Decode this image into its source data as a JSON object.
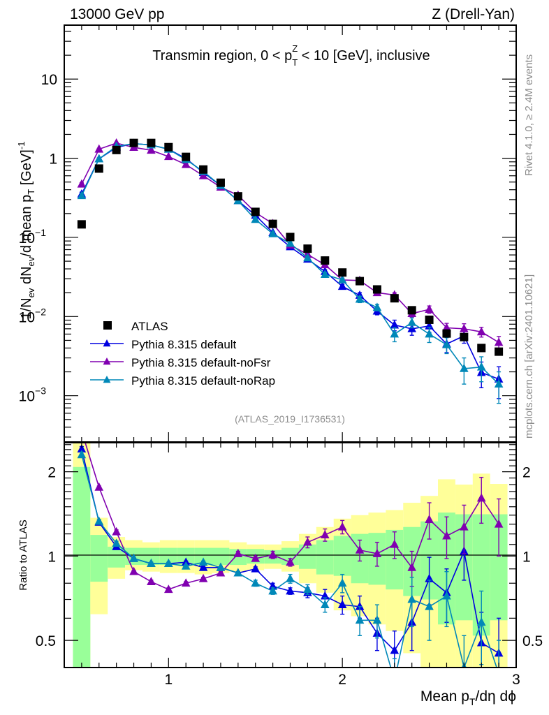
{
  "header": {
    "left": "13000 GeV pp",
    "right": "Z (Drell-Yan)"
  },
  "side_labels": {
    "rivet": "Rivet 4.1.0, ≥ 2.4M events",
    "mcplots": "mcplots.cern.ch [arXiv:2401.10621]"
  },
  "chart_data": [
    {
      "type": "scatter",
      "panel": "main",
      "title": "Transmin region, 0 < p_T^Z < 10 [GeV], inclusive",
      "title_parts": {
        "pre": "Transmin region, 0 < p",
        "sup": "Z",
        "sub": "T",
        "post": " < 10 [GeV], inclusive"
      },
      "xlabel": "Mean p_T/dη dϕ",
      "ylabel": "1/N_ev dN_ev/d mean p_T [GeV]^-1",
      "yscale": "log",
      "xlim": [
        0.4,
        3.0
      ],
      "ylim": [
        0.00026,
        48
      ],
      "yticks": [
        {
          "v": 10,
          "base": "10",
          "exp": ""
        },
        {
          "v": 1,
          "base": "1",
          "exp": ""
        },
        {
          "v": 0.1,
          "base": "10",
          "exp": "−1"
        },
        {
          "v": 0.01,
          "base": "10",
          "exp": "−2"
        },
        {
          "v": 0.001,
          "base": "10",
          "exp": "−3"
        }
      ],
      "annotation": "(ATLAS_2019_I1736531)",
      "legend_position": "lower-left",
      "x": [
        0.5,
        0.6,
        0.7,
        0.8,
        0.9,
        1.0,
        1.1,
        1.2,
        1.3,
        1.4,
        1.5,
        1.6,
        1.7,
        1.8,
        1.9,
        2.0,
        2.1,
        2.2,
        2.3,
        2.4,
        2.5,
        2.6,
        2.7,
        2.8,
        2.9
      ],
      "series": [
        {
          "name": "ATLAS",
          "color": "#000000",
          "marker": "square",
          "values": [
            0.146,
            0.74,
            1.27,
            1.56,
            1.56,
            1.38,
            1.04,
            0.72,
            0.49,
            0.33,
            0.21,
            0.148,
            0.101,
            0.072,
            0.051,
            0.036,
            0.028,
            0.022,
            0.017,
            0.012,
            0.0091,
            0.0061,
            0.0055,
            0.004,
            0.0036
          ]
        },
        {
          "name": "Pythia 8.315 default",
          "color": "#0000e0",
          "marker": "triangle",
          "values": [
            0.352,
            0.98,
            1.37,
            1.53,
            1.47,
            1.3,
            0.99,
            0.66,
            0.45,
            0.29,
            0.19,
            0.115,
            0.076,
            0.053,
            0.037,
            0.024,
            0.0185,
            0.0117,
            0.0078,
            0.007,
            0.0076,
            0.0045,
            0.0057,
            0.00196,
            0.00162
          ],
          "err": [
            0.02,
            0.03,
            0.04,
            0.04,
            0.04,
            0.03,
            0.03,
            0.02,
            0.01,
            0.008,
            0.005,
            0.004,
            0.003,
            0.002,
            0.002,
            0.0015,
            0.0015,
            0.0012,
            0.0012,
            0.0012,
            0.0013,
            0.001,
            0.0011,
            0.0007,
            0.0007
          ]
        },
        {
          "name": "Pythia 8.315 default-noFsr",
          "color": "#8000b0",
          "marker": "triangle",
          "values": [
            0.47,
            1.3,
            1.55,
            1.37,
            1.26,
            1.05,
            0.83,
            0.6,
            0.43,
            0.34,
            0.206,
            0.149,
            0.08,
            0.061,
            0.045,
            0.029,
            0.0285,
            0.02,
            0.0187,
            0.0109,
            0.0123,
            0.0072,
            0.007,
            0.0064,
            0.0047
          ],
          "err": [
            0.02,
            0.03,
            0.04,
            0.04,
            0.04,
            0.03,
            0.03,
            0.02,
            0.01,
            0.008,
            0.005,
            0.004,
            0.003,
            0.002,
            0.002,
            0.0015,
            0.0015,
            0.0012,
            0.0012,
            0.0012,
            0.0013,
            0.001,
            0.0011,
            0.0009,
            0.0009
          ]
        },
        {
          "name": "Pythia 8.315 default-noRap",
          "color": "#0088b8",
          "marker": "triangle",
          "values": [
            0.336,
            0.98,
            1.41,
            1.53,
            1.47,
            1.3,
            0.96,
            0.68,
            0.45,
            0.29,
            0.168,
            0.111,
            0.084,
            0.055,
            0.034,
            0.029,
            0.0165,
            0.013,
            0.006,
            0.0084,
            0.006,
            0.0044,
            0.0022,
            0.0023,
            0.0014
          ],
          "err": [
            0.02,
            0.03,
            0.04,
            0.04,
            0.04,
            0.03,
            0.03,
            0.02,
            0.01,
            0.008,
            0.005,
            0.004,
            0.003,
            0.002,
            0.002,
            0.0015,
            0.0015,
            0.0012,
            0.0012,
            0.0012,
            0.0013,
            0.001,
            0.0008,
            0.0008,
            0.0006
          ]
        }
      ]
    },
    {
      "type": "scatter",
      "panel": "ratio",
      "ylabel": "Ratio to ATLAS",
      "yscale": "log",
      "xlim": [
        0.4,
        3.0
      ],
      "ylim": [
        0.4,
        2.54
      ],
      "yticks": [
        {
          "v": 2,
          "label": "2"
        },
        {
          "v": 1,
          "label": "1"
        },
        {
          "v": 0.5,
          "label": "0.5"
        }
      ],
      "xticks": [
        {
          "v": 1,
          "label": "1"
        },
        {
          "v": 2,
          "label": "2"
        },
        {
          "v": 3,
          "label": "3"
        }
      ],
      "x": [
        0.5,
        0.6,
        0.7,
        0.8,
        0.9,
        1.0,
        1.1,
        1.2,
        1.3,
        1.4,
        1.5,
        1.6,
        1.7,
        1.8,
        1.9,
        2.0,
        2.1,
        2.2,
        2.3,
        2.4,
        2.5,
        2.6,
        2.7,
        2.8,
        2.9
      ],
      "bands": {
        "stat_color": "#99ff99",
        "total_color": "#ffff99",
        "bin_edges": [
          0.45,
          0.55,
          0.65,
          0.75,
          0.85,
          0.95,
          1.05,
          1.15,
          1.25,
          1.35,
          1.45,
          1.55,
          1.65,
          1.75,
          1.85,
          1.95,
          2.05,
          2.15,
          2.25,
          2.35,
          2.45,
          2.55,
          2.65,
          2.75,
          2.85,
          2.95
        ],
        "stat_hi": [
          2.08,
          1.19,
          1.08,
          1.07,
          1.07,
          1.07,
          1.07,
          1.07,
          1.07,
          1.06,
          1.06,
          1.05,
          1.07,
          1.1,
          1.14,
          1.18,
          1.2,
          1.21,
          1.24,
          1.27,
          1.33,
          1.43,
          1.41,
          1.41,
          1.41
        ],
        "stat_lo": [
          0.4,
          0.81,
          0.91,
          0.93,
          0.93,
          0.93,
          0.93,
          0.93,
          0.93,
          0.93,
          0.94,
          0.94,
          0.93,
          0.9,
          0.86,
          0.85,
          0.8,
          0.79,
          0.76,
          0.72,
          0.7,
          0.57,
          0.59,
          0.52,
          0.59
        ],
        "total_hi": [
          2.54,
          1.37,
          1.17,
          1.14,
          1.12,
          1.14,
          1.14,
          1.14,
          1.14,
          1.12,
          1.1,
          1.1,
          1.13,
          1.2,
          1.27,
          1.36,
          1.4,
          1.43,
          1.46,
          1.55,
          1.64,
          1.88,
          1.8,
          1.97,
          1.81
        ],
        "total_lo": [
          0.4,
          0.62,
          0.83,
          0.89,
          0.88,
          0.87,
          0.87,
          0.86,
          0.87,
          0.88,
          0.89,
          0.9,
          0.88,
          0.8,
          0.74,
          0.64,
          0.61,
          0.57,
          0.54,
          0.45,
          0.4,
          0.4,
          0.4,
          0.4,
          0.4
        ]
      },
      "series": [
        {
          "name": "Pythia 8.315 default",
          "color": "#0000e0",
          "values": [
            2.41,
            1.32,
            1.08,
            0.98,
            0.94,
            0.94,
            0.95,
            0.91,
            0.91,
            0.87,
            0.9,
            0.78,
            0.75,
            0.74,
            0.72,
            0.67,
            0.66,
            0.53,
            0.46,
            0.58,
            0.83,
            0.74,
            1.04,
            0.49,
            0.45
          ],
          "err": [
            0.05,
            0.02,
            0.02,
            0.01,
            0.01,
            0.01,
            0.01,
            0.01,
            0.01,
            0.01,
            0.015,
            0.02,
            0.02,
            0.03,
            0.04,
            0.05,
            0.06,
            0.07,
            0.08,
            0.12,
            0.16,
            0.16,
            0.22,
            0.14,
            0.15
          ]
        },
        {
          "name": "Pythia 8.315 default-noFsr",
          "color": "#8000b0",
          "values": [
            3.2,
            1.76,
            1.22,
            0.88,
            0.81,
            0.76,
            0.8,
            0.83,
            0.87,
            1.02,
            0.98,
            1.01,
            0.95,
            1.12,
            1.19,
            1.27,
            1.05,
            1.02,
            1.1,
            0.91,
            1.35,
            1.18,
            1.27,
            1.61,
            1.3
          ],
          "err": [
            0.05,
            0.02,
            0.02,
            0.01,
            0.01,
            0.01,
            0.01,
            0.01,
            0.01,
            0.02,
            0.02,
            0.03,
            0.03,
            0.05,
            0.06,
            0.07,
            0.09,
            0.1,
            0.12,
            0.13,
            0.2,
            0.2,
            0.25,
            0.3,
            0.3
          ]
        },
        {
          "name": "Pythia 8.315 default-noRap",
          "color": "#0088b8",
          "values": [
            2.3,
            1.33,
            1.11,
            0.98,
            0.94,
            0.94,
            0.92,
            0.95,
            0.91,
            0.87,
            0.8,
            0.75,
            0.83,
            0.76,
            0.67,
            0.8,
            0.59,
            0.59,
            0.35,
            0.7,
            0.66,
            0.72,
            0.4,
            0.58,
            0.38
          ],
          "err": [
            0.05,
            0.02,
            0.02,
            0.01,
            0.01,
            0.01,
            0.01,
            0.01,
            0.01,
            0.01,
            0.02,
            0.02,
            0.03,
            0.03,
            0.04,
            0.06,
            0.07,
            0.08,
            0.08,
            0.14,
            0.16,
            0.16,
            0.12,
            0.17,
            0.12
          ]
        }
      ]
    }
  ]
}
